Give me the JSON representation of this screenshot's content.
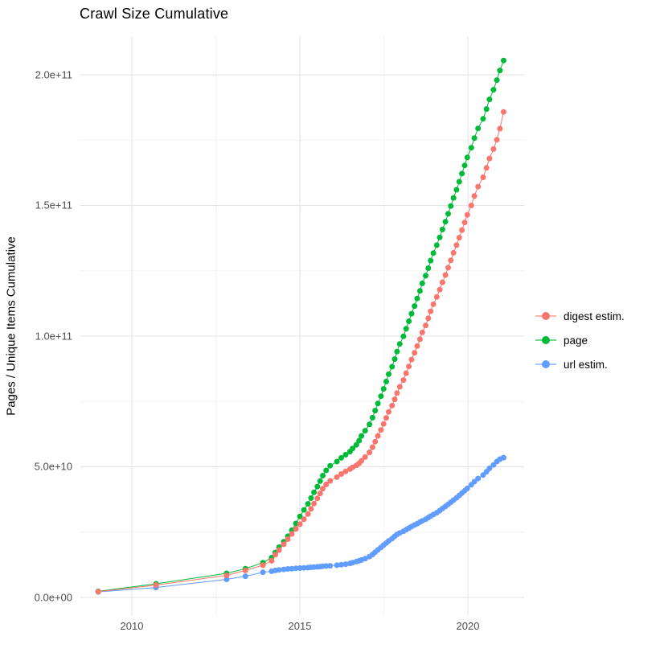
{
  "page": {
    "title": "Crawl Size Cumulative"
  },
  "axes": {
    "y_title": "Pages / Unique Items Cumulative",
    "y_tick_labels": [
      "0.0e+00",
      "5.0e+10",
      "1.0e+11",
      "1.5e+11",
      "2.0e+11"
    ],
    "x_tick_labels": [
      "2010",
      "2015",
      "2020"
    ]
  },
  "legend": [
    {
      "id": "digest",
      "label": "digest estim.",
      "color": "#F8766D"
    },
    {
      "id": "page",
      "label": "page",
      "color": "#00BA38"
    },
    {
      "id": "url",
      "label": "url estim.",
      "color": "#619CFF"
    }
  ],
  "colors": {
    "grid_major": "#e4e4e4",
    "grid_minor": "#f2f2f2",
    "background": "#ffffff"
  },
  "chart_data": {
    "type": "scatter",
    "title": "Crawl Size Cumulative",
    "xlabel": "",
    "ylabel": "Pages / Unique Items Cumulative",
    "y_unit": "pages, values in units of 1e9 (1.0e+11 = 100)",
    "x_unit": "decimal year",
    "x_domain": [
      2008.47,
      2021.67
    ],
    "y_domain": [
      -6.8,
      214.8
    ],
    "x_major_gridlines": [
      2010,
      2015,
      2020
    ],
    "x_minor_gridlines": [
      2012.5,
      2017.5
    ],
    "y_major_gridlines": [
      0,
      50,
      100,
      150,
      200
    ],
    "y_minor_gridlines": [
      25,
      75,
      125,
      175
    ],
    "y_tick_values": [
      0,
      50,
      100,
      150,
      200
    ],
    "y_tick_labels": [
      "0.0e+00",
      "5.0e+10",
      "1.0e+11",
      "1.5e+11",
      "2.0e+11"
    ],
    "x_tick_values": [
      2010,
      2015,
      2020
    ],
    "x_tick_labels": [
      "2010",
      "2015",
      "2020"
    ],
    "legend_position": "right",
    "grid": true,
    "marker_radius_px": 3.5,
    "x": [
      2009.0,
      2010.72,
      2012.82,
      2013.38,
      2013.9,
      2014.16,
      2014.27,
      2014.38,
      2014.52,
      2014.64,
      2014.76,
      2014.88,
      2015.0,
      2015.12,
      2015.24,
      2015.33,
      2015.42,
      2015.52,
      2015.6,
      2015.68,
      2015.78,
      2015.9,
      2016.1,
      2016.23,
      2016.36,
      2016.49,
      2016.57,
      2016.68,
      2016.76,
      2016.83,
      2016.94,
      2017.07,
      2017.16,
      2017.24,
      2017.32,
      2017.41,
      2017.49,
      2017.57,
      2017.64,
      2017.74,
      2017.82,
      2017.89,
      2017.97,
      2018.08,
      2018.16,
      2018.24,
      2018.32,
      2018.41,
      2018.49,
      2018.57,
      2018.64,
      2018.74,
      2018.82,
      2018.89,
      2018.97,
      2019.07,
      2019.16,
      2019.24,
      2019.33,
      2019.41,
      2019.49,
      2019.57,
      2019.66,
      2019.74,
      2019.82,
      2019.9,
      2019.98,
      2020.1,
      2020.19,
      2020.3,
      2020.45,
      2020.55,
      2020.64,
      2020.76,
      2020.86,
      2020.95,
      2021.06
    ],
    "series": [
      {
        "name": "digest estim.",
        "color": "#F8766D",
        "values": [
          2.2,
          4.7,
          8.4,
          10.3,
          12.3,
          14.0,
          16.3,
          18.1,
          20.3,
          22.3,
          24.3,
          26.2,
          28.0,
          29.9,
          31.9,
          33.9,
          35.9,
          37.9,
          39.8,
          41.6,
          43.2,
          44.6,
          46.0,
          47.2,
          48.2,
          49.1,
          49.8,
          50.5,
          51.3,
          52.3,
          53.7,
          55.5,
          57.5,
          59.6,
          61.8,
          64.1,
          66.4,
          68.7,
          71.0,
          73.4,
          75.8,
          78.2,
          80.6,
          83.2,
          85.8,
          88.4,
          91.0,
          93.6,
          96.2,
          98.8,
          101.4,
          104.1,
          106.8,
          109.5,
          112.2,
          115.0,
          117.8,
          120.6,
          123.4,
          126.2,
          129.0,
          131.9,
          134.8,
          137.7,
          140.6,
          143.5,
          146.4,
          150.0,
          153.6,
          157.2,
          160.8,
          164.4,
          168.0,
          171.6,
          175.2,
          179.4,
          185.8
        ]
      },
      {
        "name": "page",
        "color": "#00BA38",
        "values": [
          2.3,
          5.2,
          9.2,
          11.0,
          13.3,
          15.2,
          17.2,
          19.2,
          21.3,
          23.4,
          25.7,
          28.3,
          31.0,
          33.5,
          35.8,
          38.0,
          40.2,
          42.4,
          44.5,
          46.6,
          48.6,
          50.4,
          52.0,
          53.4,
          54.6,
          55.8,
          57.0,
          58.4,
          60.0,
          61.8,
          63.8,
          66.2,
          68.8,
          71.5,
          74.2,
          77.0,
          79.8,
          82.6,
          85.4,
          88.3,
          91.2,
          94.1,
          97.0,
          99.9,
          102.8,
          105.7,
          108.6,
          111.5,
          114.4,
          117.3,
          120.2,
          123.1,
          126.0,
          128.9,
          131.8,
          134.8,
          137.8,
          140.8,
          143.8,
          146.8,
          149.8,
          152.9,
          156.0,
          159.1,
          162.2,
          165.3,
          168.4,
          172.1,
          175.8,
          179.5,
          183.2,
          186.9,
          190.6,
          194.3,
          198.0,
          201.7,
          205.5
        ]
      },
      {
        "name": "url estim.",
        "color": "#619CFF",
        "values": [
          2.1,
          3.8,
          6.9,
          8.1,
          9.6,
          10.0,
          10.3,
          10.5,
          10.7,
          10.9,
          11.0,
          11.1,
          11.2,
          11.3,
          11.4,
          11.5,
          11.6,
          11.7,
          11.8,
          11.9,
          12.0,
          12.1,
          12.3,
          12.5,
          12.7,
          13.0,
          13.3,
          13.7,
          14.0,
          14.3,
          14.8,
          15.6,
          16.4,
          17.3,
          18.2,
          19.1,
          20.0,
          20.8,
          21.6,
          22.5,
          23.4,
          24.1,
          24.7,
          25.3,
          25.9,
          26.5,
          27.1,
          27.7,
          28.2,
          28.8,
          29.3,
          29.9,
          30.5,
          31.1,
          31.7,
          32.4,
          33.2,
          34.0,
          34.8,
          35.6,
          36.4,
          37.2,
          38.1,
          39.0,
          39.9,
          40.8,
          41.7,
          43.1,
          44.3,
          45.5,
          46.8,
          48.1,
          49.4,
          50.7,
          52.0,
          52.9,
          53.5
        ]
      }
    ]
  }
}
